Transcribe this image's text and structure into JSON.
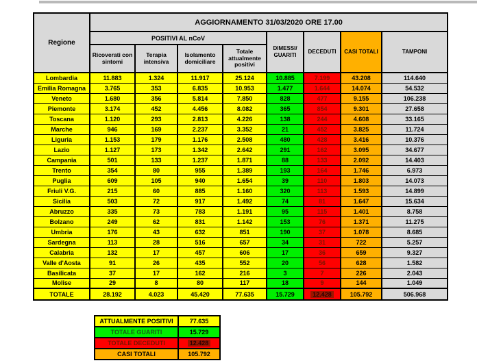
{
  "chart_data": {
    "type": "table",
    "title": "AGGIORNAMENTO 31/03/2020 ORE 17.00",
    "corner": "Regione",
    "group_header": "POSITIVI AL nCoV",
    "columns": [
      "Ricoverati con sintomi",
      "Terapia intensiva",
      "Isolamento domiciliare",
      "Totale attualmente positivi",
      "DIMESSI/\nGUARITI",
      "DECEDUTI",
      "CASI TOTALI",
      "TAMPONI"
    ],
    "rows": [
      {
        "region": "Lombardia",
        "values": [
          "11.883",
          "1.324",
          "11.917",
          "25.124",
          "10.885",
          "7.199",
          "43.208",
          "114.640"
        ]
      },
      {
        "region": "Emilia Romagna",
        "values": [
          "3.765",
          "353",
          "6.835",
          "10.953",
          "1.477",
          "1.644",
          "14.074",
          "54.532"
        ]
      },
      {
        "region": "Veneto",
        "values": [
          "1.680",
          "356",
          "5.814",
          "7.850",
          "828",
          "477",
          "9.155",
          "106.238"
        ]
      },
      {
        "region": "Piemonte",
        "values": [
          "3.174",
          "452",
          "4.456",
          "8.082",
          "365",
          "854",
          "9.301",
          "27.658"
        ]
      },
      {
        "region": "Toscana",
        "values": [
          "1.120",
          "293",
          "2.813",
          "4.226",
          "138",
          "244",
          "4.608",
          "33.165"
        ]
      },
      {
        "region": "Marche",
        "values": [
          "946",
          "169",
          "2.237",
          "3.352",
          "21",
          "452",
          "3.825",
          "11.724"
        ]
      },
      {
        "region": "Liguria",
        "values": [
          "1.153",
          "179",
          "1.176",
          "2.508",
          "480",
          "428",
          "3.416",
          "10.376"
        ]
      },
      {
        "region": "Lazio",
        "values": [
          "1.127",
          "173",
          "1.342",
          "2.642",
          "291",
          "162",
          "3.095",
          "34.677"
        ]
      },
      {
        "region": "Campania",
        "values": [
          "501",
          "133",
          "1.237",
          "1.871",
          "88",
          "133",
          "2.092",
          "14.403"
        ]
      },
      {
        "region": "Trento",
        "values": [
          "354",
          "80",
          "955",
          "1.389",
          "193",
          "164",
          "1.746",
          "6.973"
        ]
      },
      {
        "region": "Puglia",
        "values": [
          "609",
          "105",
          "940",
          "1.654",
          "39",
          "110",
          "1.803",
          "14.073"
        ]
      },
      {
        "region": "Friuli V.G.",
        "values": [
          "215",
          "60",
          "885",
          "1.160",
          "320",
          "113",
          "1.593",
          "14.899"
        ]
      },
      {
        "region": "Sicilia",
        "values": [
          "503",
          "72",
          "917",
          "1.492",
          "74",
          "81",
          "1.647",
          "15.634"
        ]
      },
      {
        "region": "Abruzzo",
        "values": [
          "335",
          "73",
          "783",
          "1.191",
          "95",
          "115",
          "1.401",
          "8.758"
        ]
      },
      {
        "region": "Bolzano",
        "values": [
          "249",
          "62",
          "831",
          "1.142",
          "153",
          "76",
          "1.371",
          "11.275"
        ]
      },
      {
        "region": "Umbria",
        "values": [
          "176",
          "43",
          "632",
          "851",
          "190",
          "37",
          "1.078",
          "8.685"
        ]
      },
      {
        "region": "Sardegna",
        "values": [
          "113",
          "28",
          "516",
          "657",
          "34",
          "31",
          "722",
          "5.257"
        ]
      },
      {
        "region": "Calabria",
        "values": [
          "132",
          "17",
          "457",
          "606",
          "17",
          "36",
          "659",
          "9.327"
        ]
      },
      {
        "region": "Valle d'Aosta",
        "values": [
          "91",
          "26",
          "435",
          "552",
          "20",
          "56",
          "628",
          "1.582"
        ]
      },
      {
        "region": "Basilicata",
        "values": [
          "37",
          "17",
          "162",
          "216",
          "3",
          "7",
          "226",
          "2.043"
        ]
      },
      {
        "region": "Molise",
        "values": [
          "29",
          "8",
          "80",
          "117",
          "18",
          "9",
          "144",
          "1.049"
        ]
      }
    ],
    "total": {
      "label": "TOTALE",
      "values": [
        "28.192",
        "4.023",
        "45.420",
        "77.635",
        "15.729",
        "12.428",
        "105.792",
        "506.968"
      ]
    },
    "summary": [
      {
        "label": "ATTUALMENTE POSITIVI",
        "value": "77.635",
        "color": "#ffff00"
      },
      {
        "label": "TOTALE GUARITI",
        "value": "15.729",
        "color": "#00f000"
      },
      {
        "label": "TOTALE DECEDUTI",
        "value": "12.428",
        "color": "#ff0000"
      },
      {
        "label": "CASI TOTALI",
        "value": "105.792",
        "color": "#ffb000"
      }
    ],
    "colors": {
      "positivi_yellow": "#ffff00",
      "guariti_green": "#00f000",
      "deceduti_red": "#ff0000",
      "deceduti_text": "#7a1400",
      "casi_totali_orange": "#ffb000",
      "header_gray": "#d9d9d9",
      "tamponi_gray": "#d9d9d9"
    }
  }
}
